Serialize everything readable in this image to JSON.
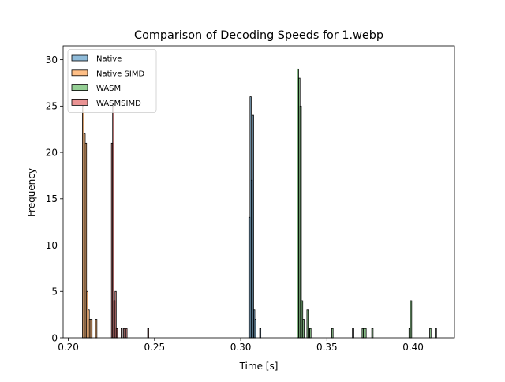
{
  "chart_data": {
    "type": "histogram",
    "title": "Comparison of Decoding Speeds for 1.webp",
    "xlabel": "Time [s]",
    "ylabel": "Frequency",
    "xlim": [
      0.197,
      0.424
    ],
    "ylim": [
      0,
      31.5
    ],
    "xticks": [
      {
        "value": 0.2,
        "label": "0.20"
      },
      {
        "value": 0.25,
        "label": "0.25"
      },
      {
        "value": 0.3,
        "label": "0.30"
      },
      {
        "value": 0.35,
        "label": "0.35"
      },
      {
        "value": 0.4,
        "label": "0.40"
      }
    ],
    "yticks": [
      {
        "value": 0,
        "label": "0"
      },
      {
        "value": 5,
        "label": "5"
      },
      {
        "value": 10,
        "label": "10"
      },
      {
        "value": 15,
        "label": "15"
      },
      {
        "value": 20,
        "label": "20"
      },
      {
        "value": 25,
        "label": "25"
      },
      {
        "value": 30,
        "label": "30"
      }
    ],
    "grid": false,
    "legend_position": "top-left",
    "series": [
      {
        "name": "Native",
        "color": "#1f77b4",
        "bin_width": 0.0007,
        "bins": [
          {
            "x": 0.3047,
            "count": 13
          },
          {
            "x": 0.3054,
            "count": 26
          },
          {
            "x": 0.3061,
            "count": 17
          },
          {
            "x": 0.3068,
            "count": 24
          },
          {
            "x": 0.3075,
            "count": 3
          },
          {
            "x": 0.3082,
            "count": 2
          },
          {
            "x": 0.311,
            "count": 1
          }
        ]
      },
      {
        "name": "Native SIMD",
        "color": "#ff7f0e",
        "bin_width": 0.0008,
        "bins": [
          {
            "x": 0.2082,
            "count": 25
          },
          {
            "x": 0.209,
            "count": 22
          },
          {
            "x": 0.2098,
            "count": 21
          },
          {
            "x": 0.2106,
            "count": 5
          },
          {
            "x": 0.2114,
            "count": 3
          },
          {
            "x": 0.2122,
            "count": 2
          },
          {
            "x": 0.213,
            "count": 2
          },
          {
            "x": 0.2158,
            "count": 2
          }
        ]
      },
      {
        "name": "WASM",
        "color": "#2ca02c",
        "bin_width": 0.0008,
        "bins": [
          {
            "x": 0.3328,
            "count": 29
          },
          {
            "x": 0.3336,
            "count": 28
          },
          {
            "x": 0.3344,
            "count": 25
          },
          {
            "x": 0.3352,
            "count": 4
          },
          {
            "x": 0.336,
            "count": 2
          },
          {
            "x": 0.3384,
            "count": 3
          },
          {
            "x": 0.3392,
            "count": 1
          },
          {
            "x": 0.34,
            "count": 1
          },
          {
            "x": 0.3528,
            "count": 1
          },
          {
            "x": 0.3648,
            "count": 1
          },
          {
            "x": 0.3704,
            "count": 1
          },
          {
            "x": 0.3712,
            "count": 1
          },
          {
            "x": 0.372,
            "count": 1
          },
          {
            "x": 0.376,
            "count": 1
          },
          {
            "x": 0.3976,
            "count": 1
          },
          {
            "x": 0.3984,
            "count": 4
          },
          {
            "x": 0.4096,
            "count": 1
          },
          {
            "x": 0.4128,
            "count": 1
          }
        ]
      },
      {
        "name": "WASMSIMD",
        "color": "#d62728",
        "bin_width": 0.0007,
        "bins": [
          {
            "x": 0.225,
            "count": 21
          },
          {
            "x": 0.2257,
            "count": 25
          },
          {
            "x": 0.2264,
            "count": 4
          },
          {
            "x": 0.2271,
            "count": 5
          },
          {
            "x": 0.2278,
            "count": 1
          },
          {
            "x": 0.2306,
            "count": 1
          },
          {
            "x": 0.232,
            "count": 1
          },
          {
            "x": 0.2334,
            "count": 1
          },
          {
            "x": 0.246,
            "count": 1
          }
        ]
      }
    ]
  }
}
